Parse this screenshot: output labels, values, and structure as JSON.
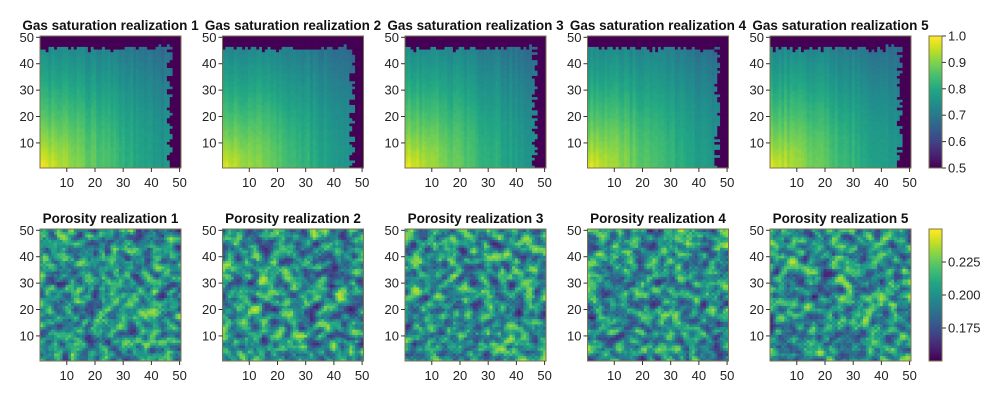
{
  "chart_data": [
    {
      "type": "heatmap",
      "row": "gas_saturation",
      "colormap": "viridis",
      "grid": {
        "nx": 50,
        "ny": 50
      },
      "xlim": [
        0.5,
        50.5
      ],
      "ylim": [
        0.5,
        50.5
      ],
      "xticks": [
        10,
        20,
        30,
        40,
        50
      ],
      "yticks": [
        10,
        20,
        30,
        40,
        50
      ],
      "color_range": [
        0.5,
        1.0
      ],
      "colorbar_ticks": [
        "0.5",
        "0.6",
        "0.7",
        "0.8",
        "0.9",
        "1.0"
      ],
      "description": "Saturation ~1.0 at bottom-left injection corner decreasing toward ~0.7 at a sharp front near x≈46-48 and y≈45-47; outside the front value 0.5",
      "panels": [
        {
          "title": "Gas saturation realization 1",
          "seed": 11
        },
        {
          "title": "Gas saturation realization 2",
          "seed": 23
        },
        {
          "title": "Gas saturation realization 3",
          "seed": 37
        },
        {
          "title": "Gas saturation realization 4",
          "seed": 41
        },
        {
          "title": "Gas saturation realization 5",
          "seed": 59
        }
      ]
    },
    {
      "type": "heatmap",
      "row": "porosity",
      "colormap": "viridis",
      "grid": {
        "nx": 50,
        "ny": 50
      },
      "xlim": [
        0.5,
        50.5
      ],
      "ylim": [
        0.5,
        50.5
      ],
      "xticks": [
        10,
        20,
        30,
        40,
        50
      ],
      "yticks": [
        10,
        20,
        30,
        40,
        50
      ],
      "color_range": [
        0.15,
        0.25
      ],
      "colorbar_ticks": [
        "0.175",
        "0.200",
        "0.225"
      ],
      "colorbar_tick_values": [
        0.175,
        0.2,
        0.225
      ],
      "description": "Random porosity fields, values clustered near extremes 0.15 and 0.25 with some intermediate",
      "panels": [
        {
          "title": "Porosity realization 1",
          "seed": 101
        },
        {
          "title": "Porosity realization 2",
          "seed": 202
        },
        {
          "title": "Porosity realization 3",
          "seed": 303
        },
        {
          "title": "Porosity realization 4",
          "seed": 404
        },
        {
          "title": "Porosity realization 5",
          "seed": 505
        }
      ]
    }
  ]
}
